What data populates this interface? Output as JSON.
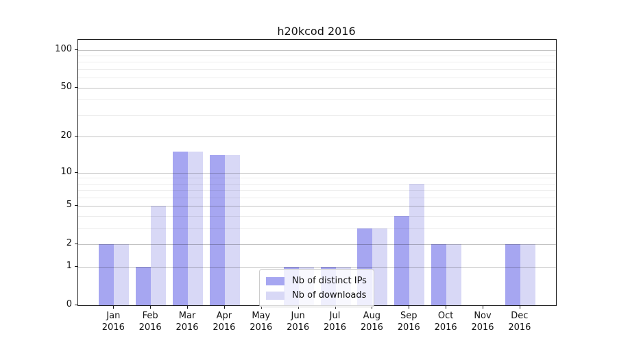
{
  "title": "h20kcod 2016",
  "colors": {
    "distinct_ips": "#a6a6f1",
    "downloads": "#d8d8f6",
    "grid_major": "rgba(0,0,0,0.24)",
    "grid_minor": "rgba(0,0,0,0.07)",
    "axis": "#1a1a1a"
  },
  "legend": {
    "items": [
      {
        "label": "Nb of distinct IPs",
        "color": "#a6a6f1"
      },
      {
        "label": "Nb of downloads",
        "color": "#d8d8f6"
      }
    ]
  },
  "chart_data": {
    "type": "bar",
    "title": "h20kcod 2016",
    "categories": [
      "Jan 2016",
      "Feb 2016",
      "Mar 2016",
      "Apr 2016",
      "May 2016",
      "Jun 2016",
      "Jul 2016",
      "Aug 2016",
      "Sep 2016",
      "Oct 2016",
      "Nov 2016",
      "Dec 2016"
    ],
    "month_labels": [
      "Jan",
      "Feb",
      "Mar",
      "Apr",
      "May",
      "Jun",
      "Jul",
      "Aug",
      "Sep",
      "Oct",
      "Nov",
      "Dec"
    ],
    "year_label": "2016",
    "series": [
      {
        "name": "Nb of distinct IPs",
        "color": "#a6a6f1",
        "values": [
          2,
          1,
          15,
          14,
          0,
          1,
          1,
          3,
          4,
          2,
          0,
          2
        ]
      },
      {
        "name": "Nb of downloads",
        "color": "#d8d8f6",
        "values": [
          2,
          5,
          15,
          14,
          0,
          1,
          1,
          3,
          8,
          2,
          0,
          2
        ]
      }
    ],
    "yscale": "log1p",
    "ylim": [
      0,
      114
    ],
    "y_major_ticks": [
      0,
      1,
      2,
      5,
      10,
      20,
      50,
      100
    ],
    "y_minor_gridlines": [
      3,
      4,
      6,
      7,
      8,
      9,
      30,
      40,
      60,
      70,
      80,
      90
    ],
    "grid": true,
    "legend_position": "lower center",
    "xlabel": "",
    "ylabel": ""
  }
}
